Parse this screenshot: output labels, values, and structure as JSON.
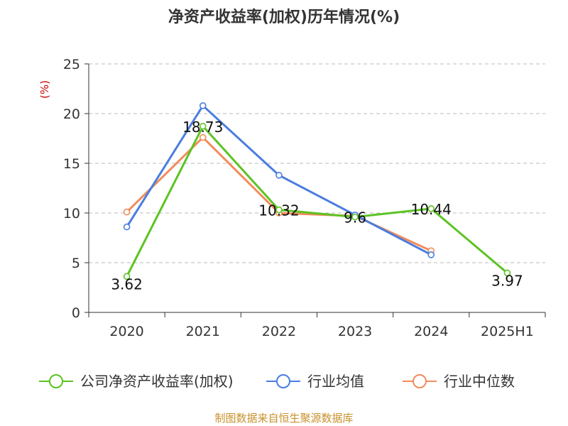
{
  "chart_data": {
    "type": "line",
    "title": "净资产收益率(加权)历年情况(%)",
    "ylabel": "(%)",
    "xlabel": "",
    "categories": [
      "2020",
      "2021",
      "2022",
      "2023",
      "2024",
      "2025H1"
    ],
    "yticks": [
      "0",
      "5",
      "10",
      "15",
      "20",
      "25"
    ],
    "ylim": [
      0,
      25
    ],
    "grid": true,
    "legend_position": "bottom",
    "series": [
      {
        "name": "公司净资产收益率(加权)",
        "color": "#5cc323",
        "values": [
          3.62,
          18.73,
          10.32,
          9.6,
          10.44,
          3.97
        ],
        "labels": [
          "3.62",
          "18.73",
          "10.32",
          "9.6",
          "10.44",
          "3.97"
        ]
      },
      {
        "name": "行业均值",
        "color": "#4a7de0",
        "values": [
          8.6,
          20.8,
          13.8,
          9.8,
          5.8,
          null
        ]
      },
      {
        "name": "行业中位数",
        "color": "#f28c5a",
        "values": [
          10.1,
          17.6,
          10.0,
          9.7,
          6.2,
          null
        ]
      }
    ]
  },
  "footer": {
    "source": "制图数据来自恒生聚源数据库"
  },
  "colors": {
    "axis": "#333333",
    "grid": "#bbbbbb",
    "ylabel": "#cc0000",
    "source": "#c8912c"
  }
}
